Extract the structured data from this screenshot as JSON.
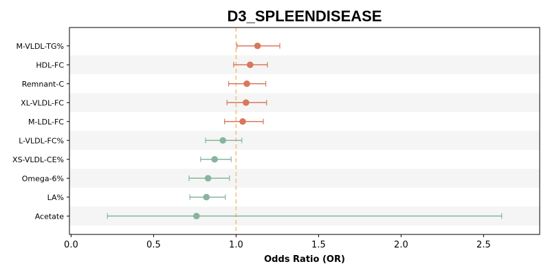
{
  "chart_data": {
    "type": "forest",
    "title": "D3_SPLEENDISEASE",
    "xlabel": "Odds Ratio (OR)",
    "ylabel": "",
    "xlim": [
      -0.01,
      2.84
    ],
    "xticks": [
      "0.0",
      "0.5",
      "1.0",
      "1.5",
      "2.0",
      "2.5"
    ],
    "xtick_values": [
      0.0,
      0.5,
      1.0,
      1.5,
      2.0,
      2.5
    ],
    "reference_line": 1.0,
    "grid": false,
    "row_banding": true,
    "colors": {
      "positive": "#d9775d",
      "negative": "#86b59d",
      "reference": "#f1c27d",
      "band": "#f5f5f5"
    },
    "rows": [
      {
        "label": "M-VLDL-TG%",
        "or": 1.13,
        "ci_low": 1.005,
        "ci_high": 1.265,
        "group": "positive"
      },
      {
        "label": "HDL-FC",
        "or": 1.085,
        "ci_low": 0.985,
        "ci_high": 1.19,
        "group": "positive"
      },
      {
        "label": "Remnant-C",
        "or": 1.065,
        "ci_low": 0.955,
        "ci_high": 1.18,
        "group": "positive"
      },
      {
        "label": "XL-VLDL-FC",
        "or": 1.06,
        "ci_low": 0.945,
        "ci_high": 1.185,
        "group": "positive"
      },
      {
        "label": "M-LDL-FC",
        "or": 1.04,
        "ci_low": 0.93,
        "ci_high": 1.165,
        "group": "positive"
      },
      {
        "label": "L-VLDL-FC%",
        "or": 0.92,
        "ci_low": 0.815,
        "ci_high": 1.035,
        "group": "negative"
      },
      {
        "label": "XS-VLDL-CE%",
        "or": 0.87,
        "ci_low": 0.785,
        "ci_high": 0.97,
        "group": "negative"
      },
      {
        "label": "Omega-6%",
        "or": 0.83,
        "ci_low": 0.715,
        "ci_high": 0.96,
        "group": "negative"
      },
      {
        "label": "LA%",
        "or": 0.82,
        "ci_low": 0.72,
        "ci_high": 0.935,
        "group": "negative"
      },
      {
        "label": "Acetate",
        "or": 0.76,
        "ci_low": 0.22,
        "ci_high": 2.61,
        "group": "negative"
      }
    ]
  }
}
